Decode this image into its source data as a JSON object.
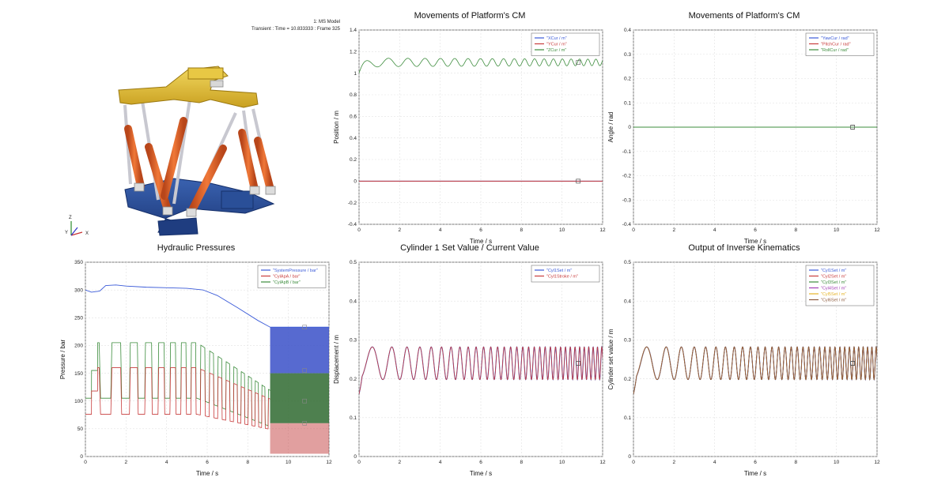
{
  "model_view": {
    "model_name": "1: MS Model",
    "frame_info": "Transient : Time = 10.833333 : Frame 325",
    "axis_labels": {
      "z": "Z",
      "y": "Y",
      "x": "X"
    },
    "colors": {
      "platform": "#e6c43c",
      "base": "#2c4f96",
      "cylinder": "#e0642a",
      "rod": "#c8c8d0",
      "joint": "#d8d8d8"
    }
  },
  "chart_data": [
    {
      "id": "platform-position",
      "type": "line",
      "title": "Movements of Platform's CM",
      "xlabel": "Time / s",
      "ylabel": "Position / m",
      "xlim": [
        0,
        12
      ],
      "ylim": [
        -0.4,
        1.4
      ],
      "xticks": [
        0,
        2,
        4,
        6,
        8,
        10,
        12
      ],
      "yticks": [
        -0.4,
        -0.2,
        0,
        0.2,
        0.4,
        0.6,
        0.8,
        1,
        1.2,
        1.4
      ],
      "grid": true,
      "legend_position": "top-right",
      "marker_x": 10.8,
      "series": [
        {
          "name": "\"XCur / m\"",
          "color": "#3a5ad8",
          "const": 0.0
        },
        {
          "name": "\"YCur / m\"",
          "color": "#c83c3c",
          "const": 0.0
        },
        {
          "name": "\"ZCur / m\"",
          "color": "#3c8c3c",
          "base": 1.0,
          "target": 1.1,
          "amp": [
            0.04,
            0.03
          ],
          "freq": [
            0.75,
            2.6
          ],
          "band": 0.015
        }
      ]
    },
    {
      "id": "platform-angle",
      "type": "line",
      "title": "Movements of Platform's CM",
      "xlabel": "Time / s",
      "ylabel": "Angle / rad",
      "xlim": [
        0,
        12
      ],
      "ylim": [
        -0.4,
        0.4
      ],
      "xticks": [
        0,
        2,
        4,
        6,
        8,
        10,
        12
      ],
      "yticks": [
        -0.4,
        -0.3,
        -0.2,
        -0.1,
        0,
        0.1,
        0.2,
        0.3,
        0.4
      ],
      "grid": true,
      "legend_position": "top-right",
      "marker_x": 10.8,
      "series": [
        {
          "name": "\"YawCur / rad\"",
          "color": "#3a5ad8",
          "const": 0.0
        },
        {
          "name": "\"PitchCur / rad\"",
          "color": "#c83c3c",
          "const": 0.0
        },
        {
          "name": "\"RollCur / rad\"",
          "color": "#3c8c3c",
          "const": 0.0
        }
      ]
    },
    {
      "id": "hydraulic-pressures",
      "type": "line",
      "title": "Hydraulic Pressures",
      "xlabel": "Time / s",
      "ylabel": "Pressure / bar",
      "xlim": [
        0,
        12
      ],
      "ylim": [
        0,
        350
      ],
      "xticks": [
        0,
        2,
        4,
        6,
        8,
        10,
        12
      ],
      "yticks": [
        0,
        50,
        100,
        150,
        200,
        250,
        300,
        350
      ],
      "grid": true,
      "legend_position": "top-right",
      "marker_x": 10.8,
      "series": [
        {
          "name": "\"SystemPressure / bar\"",
          "color": "#3a5ad8",
          "points": [
            [
              0,
              300
            ],
            [
              0.3,
              296
            ],
            [
              0.7,
              298
            ],
            [
              1.0,
              308
            ],
            [
              1.5,
              309
            ],
            [
              2,
              307
            ],
            [
              3,
              305
            ],
            [
              4,
              304
            ],
            [
              5,
              303
            ],
            [
              5.8,
              300
            ],
            [
              6.5,
              290
            ],
            [
              7.5,
              268
            ],
            [
              8.5,
              245
            ],
            [
              9.1,
              233
            ],
            [
              12,
              233
            ]
          ]
        },
        {
          "name": "\"CylApA / bar\"",
          "color": "#c83c3c"
        },
        {
          "name": "\"CylApB / bar\"",
          "color": "#3c8c3c"
        }
      ]
    },
    {
      "id": "cylinder1",
      "type": "line",
      "title": "Cylinder 1 Set Value / Current Value",
      "xlabel": "Time / s",
      "ylabel": "Displacement / m",
      "xlim": [
        0,
        12
      ],
      "ylim": [
        0,
        0.5
      ],
      "xticks": [
        0,
        2,
        4,
        6,
        8,
        10,
        12
      ],
      "yticks": [
        0,
        0.1,
        0.2,
        0.3,
        0.4,
        0.5
      ],
      "grid": true,
      "legend_position": "top-right",
      "marker_x": 10.8,
      "series": [
        {
          "name": "\"Cyl1Set / m\"",
          "color": "#3a5ad8",
          "base": 0.24,
          "amp": 0.042,
          "freq": [
            0.65,
            4.8
          ]
        },
        {
          "name": "\"Cyl1Stroke / m\"",
          "color": "#c83c3c",
          "base": 0.24,
          "amp": 0.042,
          "freq": [
            0.65,
            4.8
          ]
        }
      ]
    },
    {
      "id": "inverse-kinematics",
      "type": "line",
      "title": "Output of Inverse Kinematics",
      "xlabel": "Time / s",
      "ylabel": "Cylinder set value / m",
      "xlim": [
        0,
        12
      ],
      "ylim": [
        0,
        0.5
      ],
      "xticks": [
        0,
        2,
        4,
        6,
        8,
        10,
        12
      ],
      "yticks": [
        0,
        0.1,
        0.2,
        0.3,
        0.4,
        0.5
      ],
      "grid": true,
      "legend_position": "top-right",
      "marker_x": 10.8,
      "series": [
        {
          "name": "\"Cyl1Set / m\"",
          "color": "#3a5ad8",
          "base": 0.24,
          "amp": 0.042,
          "freq": [
            0.65,
            4.8
          ]
        },
        {
          "name": "\"Cyl2Set / m\"",
          "color": "#c83c3c",
          "base": 0.24,
          "amp": 0.042,
          "freq": [
            0.65,
            4.8
          ]
        },
        {
          "name": "\"Cyl3Set / m\"",
          "color": "#3c8c3c",
          "base": 0.24,
          "amp": 0.042,
          "freq": [
            0.65,
            4.8
          ]
        },
        {
          "name": "\"Cyl4Set / m\"",
          "color": "#a03cb4",
          "base": 0.24,
          "amp": 0.042,
          "freq": [
            0.65,
            4.8
          ]
        },
        {
          "name": "\"Cyl5Set / m\"",
          "color": "#e6b428",
          "base": 0.24,
          "amp": 0.042,
          "freq": [
            0.65,
            4.8
          ]
        },
        {
          "name": "\"Cyl6Set / m\"",
          "color": "#8c5a3c",
          "base": 0.24,
          "amp": 0.042,
          "freq": [
            0.65,
            4.8
          ]
        }
      ]
    }
  ]
}
